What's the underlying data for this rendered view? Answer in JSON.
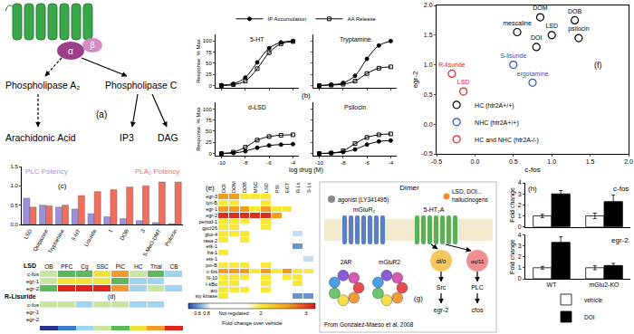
{
  "chart_data": [
    {
      "type": "line",
      "annotations": [
        "(b)"
      ],
      "xlabel": "log drug (M)",
      "ylabel": "Response, % Max",
      "x": [
        -10,
        -9,
        -8,
        -7,
        -6,
        -5,
        -4
      ],
      "xlim": [
        -10.5,
        -3.5
      ],
      "xticks": [
        -10,
        -8,
        -6,
        -4
      ],
      "ylim": [
        -5,
        115
      ],
      "yticks": [
        0,
        25,
        50,
        75,
        100
      ],
      "legend": "top",
      "panels": [
        {
          "title": "5-HT",
          "series": [
            {
              "name": "IP Accumulation",
              "color": "#000000",
              "marker": "circle",
              "values": [
                1,
                4,
                18,
                52,
                84,
                97,
                100
              ]
            },
            {
              "name": "AA Release",
              "color": "#000000",
              "marker": "square-open",
              "values": [
                0,
                2,
                10,
                38,
                74,
                94,
                99
              ]
            }
          ]
        },
        {
          "title": "Tryptamine",
          "series": [
            {
              "name": "IP Accumulation",
              "color": "#000000",
              "marker": "circle",
              "values": [
                0,
                2,
                6,
                22,
                60,
                90,
                100
              ]
            },
            {
              "name": "AA Release",
              "color": "#000000",
              "marker": "square-open",
              "values": [
                0,
                1,
                3,
                10,
                27,
                39,
                42
              ]
            }
          ]
        },
        {
          "title": "d-LSD",
          "series": [
            {
              "name": "IP Accumulation",
              "color": "#000000",
              "marker": "circle",
              "values": [
                0,
                1,
                5,
                13,
                18,
                20,
                21
              ]
            },
            {
              "name": "AA Release",
              "color": "#000000",
              "marker": "square-open",
              "values": [
                0,
                3,
                14,
                30,
                38,
                41,
                42
              ]
            }
          ]
        },
        {
          "title": "Psilocin",
          "series": [
            {
              "name": "IP Accumulation",
              "color": "#000000",
              "marker": "circle",
              "values": [
                0,
                1,
                3,
                9,
                20,
                27,
                29
              ]
            },
            {
              "name": "AA Release",
              "color": "#000000",
              "marker": "square-open",
              "values": [
                0,
                1,
                6,
                22,
                36,
                42,
                44
              ]
            }
          ]
        }
      ]
    },
    {
      "type": "bar",
      "annotations": [
        "(c)"
      ],
      "categories": [
        "LSD",
        "Quipazine",
        "Tryptamine",
        "5-HT",
        "Lisuride",
        "1",
        "DOB",
        "3",
        "5-MeO-DMT",
        "Psilocin"
      ],
      "ylim": [
        0,
        1.5
      ],
      "yticks": [
        {
          "value": 0,
          "label": "0.0"
        },
        0.5,
        {
          "value": 1,
          "label": "1.0"
        },
        1.5
      ],
      "series": [
        {
          "name": "PLC Potency",
          "color": "#9d8fdc",
          "values": [
            0.68,
            0.5,
            0.45,
            0.4,
            0.28,
            0.2,
            0.15,
            0.1,
            0.05,
            0.02
          ]
        },
        {
          "name": "PLA₂ Potency",
          "color": "#ef6f5f",
          "values": [
            0.45,
            0.48,
            0.5,
            0.75,
            0.85,
            0.9,
            0.97,
            1.0,
            1.1,
            1.1
          ]
        }
      ]
    },
    {
      "type": "heatmap",
      "annotations": [
        "(d)"
      ],
      "columns": [
        "OB",
        "PFC",
        "Cg",
        "SSC",
        "PiC",
        "HC",
        "Thal",
        "CB"
      ],
      "zlim": [
        0.5,
        8.5
      ],
      "colors": [
        "#27318b",
        "#3d7cc9",
        "#9fd3ee",
        "#c9e6a0",
        "#5cb85c",
        "#f2e33a",
        "#f39a2b",
        "#e2231a"
      ],
      "panels": [
        {
          "title": "LSD",
          "rows": [
            "c-fos",
            "egr-1",
            "egr-2"
          ],
          "cells": [
            [
              4,
              5,
              5,
              6,
              7,
              4,
              5,
              3
            ],
            [
              4,
              6,
              6,
              6,
              5,
              3,
              3,
              null
            ],
            [
              5,
              8,
              8,
              8,
              7,
              3,
              4,
              3
            ]
          ]
        },
        {
          "title": "R-Lisuride",
          "rows": [
            "c-fos",
            "egr-1",
            "egr-2"
          ],
          "cells": [
            [
              4,
              4,
              3,
              4,
              4,
              3,
              3,
              null
            ],
            [
              null,
              null,
              null,
              null,
              null,
              null,
              null,
              null
            ],
            [
              null,
              null,
              null,
              null,
              null,
              null,
              null,
              null
            ]
          ]
        }
      ]
    },
    {
      "type": "heatmap",
      "annotations": [
        "(e)"
      ],
      "columns": [
        "DOI",
        "DOM",
        "DOB",
        "MSC",
        "LSD",
        "PSI",
        "EGT",
        "R-Ls",
        "S-Ls"
      ],
      "rows": [
        "egr-3",
        "tyn-B",
        "egr-1",
        "egr-2",
        "period-1",
        "gpcr26",
        "glut-4",
        "rasa-2",
        "erk-1",
        "fra-1",
        "ets-1",
        "jun-B",
        "c-fos",
        "N-10",
        "I-kBα",
        "arc",
        "sty kinase"
      ],
      "cells": [
        [
          2.6,
          2.6,
          2.0,
          2.0,
          2.0,
          null,
          null,
          null,
          null
        ],
        [
          2.0,
          2.0,
          null,
          null,
          2.0,
          null,
          null,
          null,
          null
        ],
        [
          2.6,
          2.6,
          2.6,
          2.0,
          2.6,
          2.0,
          2.0,
          null,
          null
        ],
        [
          3.1,
          3.1,
          3.1,
          3.1,
          3.1,
          2.6,
          null,
          null,
          null
        ],
        [
          2.0,
          2.0,
          2.0,
          null,
          2.0,
          null,
          null,
          null,
          null
        ],
        [
          2.0,
          2.0,
          null,
          null,
          2.0,
          null,
          null,
          null,
          null
        ],
        [
          2.0,
          2.0,
          2.0,
          null,
          null,
          null,
          null,
          0.8,
          null
        ],
        [
          2.0,
          null,
          2.0,
          null,
          null,
          null,
          null,
          null,
          null
        ],
        [
          null,
          null,
          null,
          null,
          null,
          null,
          null,
          0.6,
          null
        ],
        [
          2.0,
          null,
          null,
          null,
          null,
          null,
          null,
          null,
          null
        ],
        [
          null,
          null,
          null,
          null,
          null,
          null,
          null,
          null,
          0.8
        ],
        [
          2.0,
          2.0,
          2.0,
          null,
          2.0,
          null,
          null,
          null,
          null
        ],
        [
          2.6,
          2.6,
          2.6,
          2.0,
          2.6,
          2.0,
          2.6,
          2.0,
          2.0
        ],
        [
          2.0,
          2.0,
          2.0,
          null,
          2.0,
          null,
          2.0,
          2.0,
          null
        ],
        [
          2.0,
          2.0,
          null,
          null,
          2.0,
          null,
          null,
          2.0,
          null
        ],
        [
          2.0,
          2.0,
          2.0,
          null,
          2.0,
          null,
          null,
          null,
          null
        ],
        [
          2.0,
          null,
          null,
          null,
          null,
          null,
          null,
          0.6,
          0.6
        ]
      ],
      "zlim": [
        0.4,
        3.2
      ],
      "colorscale": [
        [
          0.4,
          "#2b4ba0"
        ],
        [
          0.7,
          "#8ab8e6"
        ],
        [
          0.9,
          "#ffffff"
        ],
        [
          1.7,
          "#ffffff"
        ],
        [
          2.0,
          "#f7e83a"
        ],
        [
          2.6,
          "#f39c1f"
        ],
        [
          3.2,
          "#d7191c"
        ]
      ],
      "colorbar_ticks": [
        0.6,
        0.8,
        {
          "value": 1.4,
          "label": "Not regulated"
        },
        2,
        3
      ],
      "colorbar_title": "Fold change over vehicle"
    },
    {
      "type": "scatter",
      "annotations": [
        "(f)"
      ],
      "xlabel": "c-fos",
      "ylabel": "egr-2",
      "xlim": [
        -0.5,
        2.0
      ],
      "ylim": [
        -0.5,
        2.0
      ],
      "xticks": [
        -0.5,
        {
          "value": 0,
          "label": "0.0"
        },
        0.5,
        {
          "value": 1,
          "label": "1.0"
        },
        1.5,
        {
          "value": 2,
          "label": "2.0"
        }
      ],
      "yticks": [
        -0.5,
        {
          "value": 0,
          "label": "0.0"
        },
        0.5,
        {
          "value": 1,
          "label": "1.0"
        },
        1.5,
        {
          "value": 2,
          "label": "2.0"
        }
      ],
      "legend": "lower left",
      "marker": "circle-open",
      "series": [
        {
          "name": "HC (htr2A+/+)",
          "color": "#000000",
          "labels": [
            "DOM",
            "DOB",
            "mescaline",
            "LSD",
            "psilocin",
            "DOI"
          ],
          "x": [
            0.85,
            1.3,
            0.55,
            1.0,
            1.35,
            0.8
          ],
          "values": [
            1.8,
            1.75,
            1.55,
            1.5,
            1.45,
            1.3
          ]
        },
        {
          "name": "NHC (htr2A+/+)",
          "color": "#2e4fc4",
          "labels": [
            "S-lisuride",
            "ergotamine"
          ],
          "x": [
            0.5,
            0.75
          ],
          "values": [
            1.0,
            0.7
          ]
        },
        {
          "name": "HC and NHC (htr2A-/-)",
          "color": "#e0261e",
          "labels": [
            "R-lisuride",
            "LSD"
          ],
          "x": [
            -0.3,
            -0.15
          ],
          "values": [
            0.85,
            0.55
          ]
        }
      ]
    },
    {
      "type": "bar",
      "annotations": [
        "(h)"
      ],
      "ylabel": "Fold change",
      "categories": [
        "WT",
        "mGlu2-KO"
      ],
      "ylim": [
        0,
        4
      ],
      "yticks": [
        0,
        1,
        2,
        3,
        4
      ],
      "legend": "bottom",
      "panels": [
        {
          "title": "c-fos",
          "series": [
            {
              "name": "vehicle",
              "color": "#ffffff",
              "values": [
                1.0,
                1.0
              ],
              "errors": [
                0.15,
                0.25
              ]
            },
            {
              "name": "DOI",
              "color": "#000000",
              "values": [
                3.0,
                2.3
              ],
              "errors": [
                0.3,
                0.6
              ]
            }
          ]
        },
        {
          "title": "egr-2",
          "series": [
            {
              "name": "vehicle",
              "color": "#ffffff",
              "values": [
                1.0,
                1.0
              ],
              "errors": [
                0.12,
                0.18
              ]
            },
            {
              "name": "DOI",
              "color": "#000000",
              "values": [
                3.3,
                1.2
              ],
              "errors": [
                0.5,
                0.2
              ]
            }
          ]
        }
      ]
    }
  ],
  "diagrams": {
    "a": {
      "label": "(a)",
      "g_protein": [
        "α",
        "β"
      ],
      "pla2_branch": {
        "enzyme": "Phospholipase A₂",
        "product": "Arachidonic Acid"
      },
      "plc_branch": {
        "enzyme": "Phospholipase C",
        "products": [
          "IP3",
          "DAG"
        ]
      }
    },
    "g": {
      "label": "(g)",
      "title": "Dimer",
      "receptors": [
        {
          "name": "mGluR₂",
          "ligand": [
            "agonist (LY341495)"
          ]
        },
        {
          "name": "5-HT₂A",
          "ligand": [
            "LSD, DOI...",
            "hallucinogens"
          ]
        }
      ],
      "g_proteins": [
        "αi/o",
        "αq/11"
      ],
      "effectors": [
        "Src",
        "PLC"
      ],
      "genes": [
        "egr-2",
        "cfos"
      ],
      "structures": [
        "2AR",
        "mGluR2"
      ],
      "credit": "From Gonzalez-Maeso et al, 2008"
    }
  }
}
